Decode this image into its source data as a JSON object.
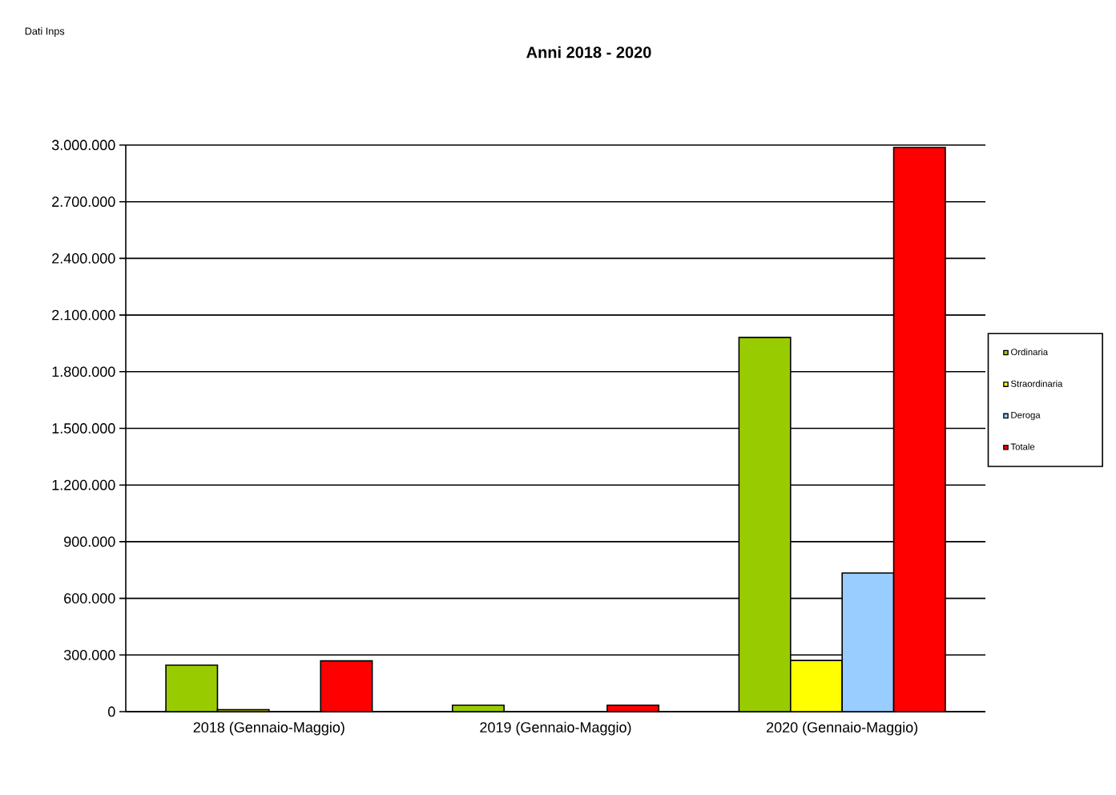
{
  "chart_data": {
    "type": "bar",
    "title": "Anni 2018 - 2020",
    "annotations": [
      "Dati Inps"
    ],
    "categories": [
      "2018 (Gennaio-Maggio)",
      "2019 (Gennaio-Maggio)",
      "2020 (Gennaio-Maggio)"
    ],
    "series": [
      {
        "name": "Ordinaria",
        "color": "#99cc00",
        "values": [
          246000,
          34000,
          1981000
        ]
      },
      {
        "name": "Straordinaria",
        "color": "#ffff00",
        "values": [
          10000,
          null,
          271000
        ]
      },
      {
        "name": "Deroga",
        "color": "#99ccff",
        "values": [
          null,
          null,
          734000
        ]
      },
      {
        "name": "Totale",
        "color": "#ff0000",
        "values": [
          269000,
          34000,
          2987000
        ]
      }
    ],
    "ylim": [
      0,
      3000000
    ],
    "yticks": [
      0,
      {
        "value": 300000,
        "label": "300.000"
      },
      {
        "value": 600000,
        "label": "600.000"
      },
      {
        "value": 900000,
        "label": "900.000"
      },
      {
        "value": 1200000,
        "label": "1.200.000"
      },
      {
        "value": 1500000,
        "label": "1.500.000"
      },
      {
        "value": 1800000,
        "label": "1.800.000"
      },
      {
        "value": 2100000,
        "label": "2.100.000"
      },
      {
        "value": 2400000,
        "label": "2.400.000"
      },
      {
        "value": 2700000,
        "label": "2.700.000"
      },
      {
        "value": 3000000,
        "label": "3.000.000"
      }
    ],
    "grid": "y",
    "legend": "right"
  }
}
